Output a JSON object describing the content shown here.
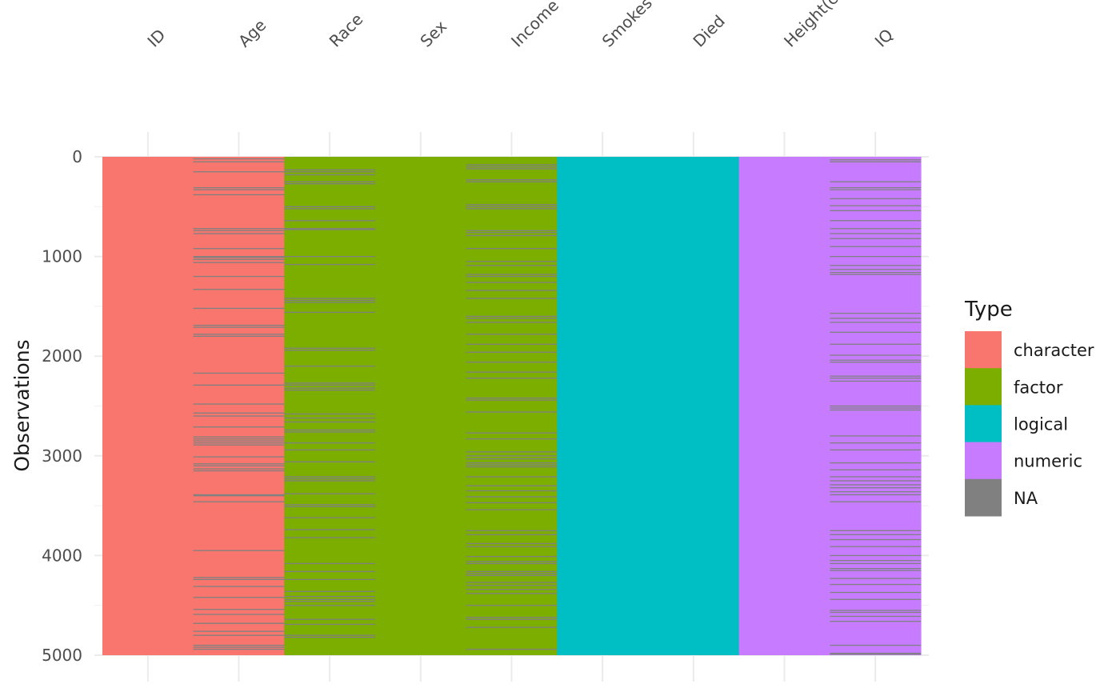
{
  "chart_data": {
    "type": "heatmap",
    "columns": [
      "ID",
      "Age",
      "Race",
      "Sex",
      "Income",
      "Smokes",
      "Died",
      "Height(cm)",
      "IQ"
    ],
    "column_types": [
      "character",
      "character",
      "factor",
      "factor",
      "factor",
      "logical",
      "logical",
      "numeric",
      "numeric"
    ],
    "ylabel": "Observations",
    "ylim": [
      0,
      5000
    ],
    "y_reversed": true,
    "y_ticks": [
      "0",
      "1000",
      "2000",
      "3000",
      "4000",
      "5000"
    ],
    "y_tick_values": [
      0,
      1000,
      2000,
      3000,
      4000,
      5000
    ],
    "legend": {
      "title": "Type",
      "position": "right",
      "entries": [
        {
          "label": "character",
          "color": "#F8766D"
        },
        {
          "label": "factor",
          "color": "#7CAE00"
        },
        {
          "label": "logical",
          "color": "#00BFC4"
        },
        {
          "label": "numeric",
          "color": "#C77CFF"
        },
        {
          "label": "NA",
          "color": "#808080"
        }
      ]
    },
    "na_rows": {
      "Age": [
        20,
        50,
        150,
        310,
        330,
        380,
        720,
        740,
        770,
        920,
        1000,
        1010,
        1030,
        1060,
        1200,
        1330,
        1520,
        1690,
        1710,
        1780,
        1800,
        2170,
        2290,
        2480,
        2570,
        2600,
        2710,
        2810,
        2830,
        2850,
        2870,
        2890,
        3010,
        3080,
        3100,
        3130,
        3150,
        3390,
        3400,
        3460,
        3950,
        4220,
        4240,
        4310,
        4420,
        4540,
        4590,
        4680,
        4760,
        4800,
        4900,
        4920,
        4940
      ],
      "Race": [
        130,
        150,
        180,
        250,
        270,
        500,
        520,
        640,
        720,
        730,
        1000,
        1080,
        1420,
        1440,
        1460,
        1560,
        1920,
        1940,
        2100,
        2270,
        2290,
        2320,
        2340,
        2580,
        2620,
        2660,
        2740,
        2760,
        2870,
        2940,
        3060,
        3210,
        3230,
        3250,
        3380,
        3490,
        3510,
        3620,
        3740,
        3820,
        4080,
        4160,
        4240,
        4360,
        4410,
        4440,
        4460,
        4500,
        4640,
        4690,
        4800,
        4820
      ],
      "Income": [
        80,
        100,
        120,
        230,
        250,
        480,
        500,
        520,
        740,
        760,
        790,
        920,
        1050,
        1090,
        1180,
        1200,
        1260,
        1340,
        1420,
        1600,
        1620,
        1660,
        1780,
        1880,
        1960,
        2060,
        2160,
        2220,
        2420,
        2440,
        2560,
        2770,
        2830,
        2960,
        3000,
        3030,
        3070,
        3090,
        3110,
        3210,
        3300,
        3350,
        3410,
        3470,
        3540,
        3750,
        3790,
        3880,
        3910,
        4010,
        4060,
        4080,
        4160,
        4180,
        4200,
        4270,
        4300,
        4340,
        4380,
        4500,
        4620,
        4640,
        4720,
        4940
      ],
      "IQ": [
        30,
        50,
        250,
        310,
        330,
        420,
        490,
        540,
        640,
        720,
        770,
        820,
        900,
        1000,
        1090,
        1130,
        1160,
        1180,
        1570,
        1620,
        1660,
        1760,
        1880,
        1990,
        2040,
        2060,
        2200,
        2220,
        2250,
        2500,
        2520,
        2540,
        2800,
        2870,
        2940,
        3070,
        3140,
        3210,
        3250,
        3290,
        3320,
        3360,
        3390,
        3460,
        3750,
        3790,
        3840,
        3910,
        4000,
        4050,
        4080,
        4130,
        4150,
        4230,
        4290,
        4370,
        4440,
        4550,
        4570,
        4610,
        4660,
        4900,
        4980,
        4990
      ]
    }
  }
}
